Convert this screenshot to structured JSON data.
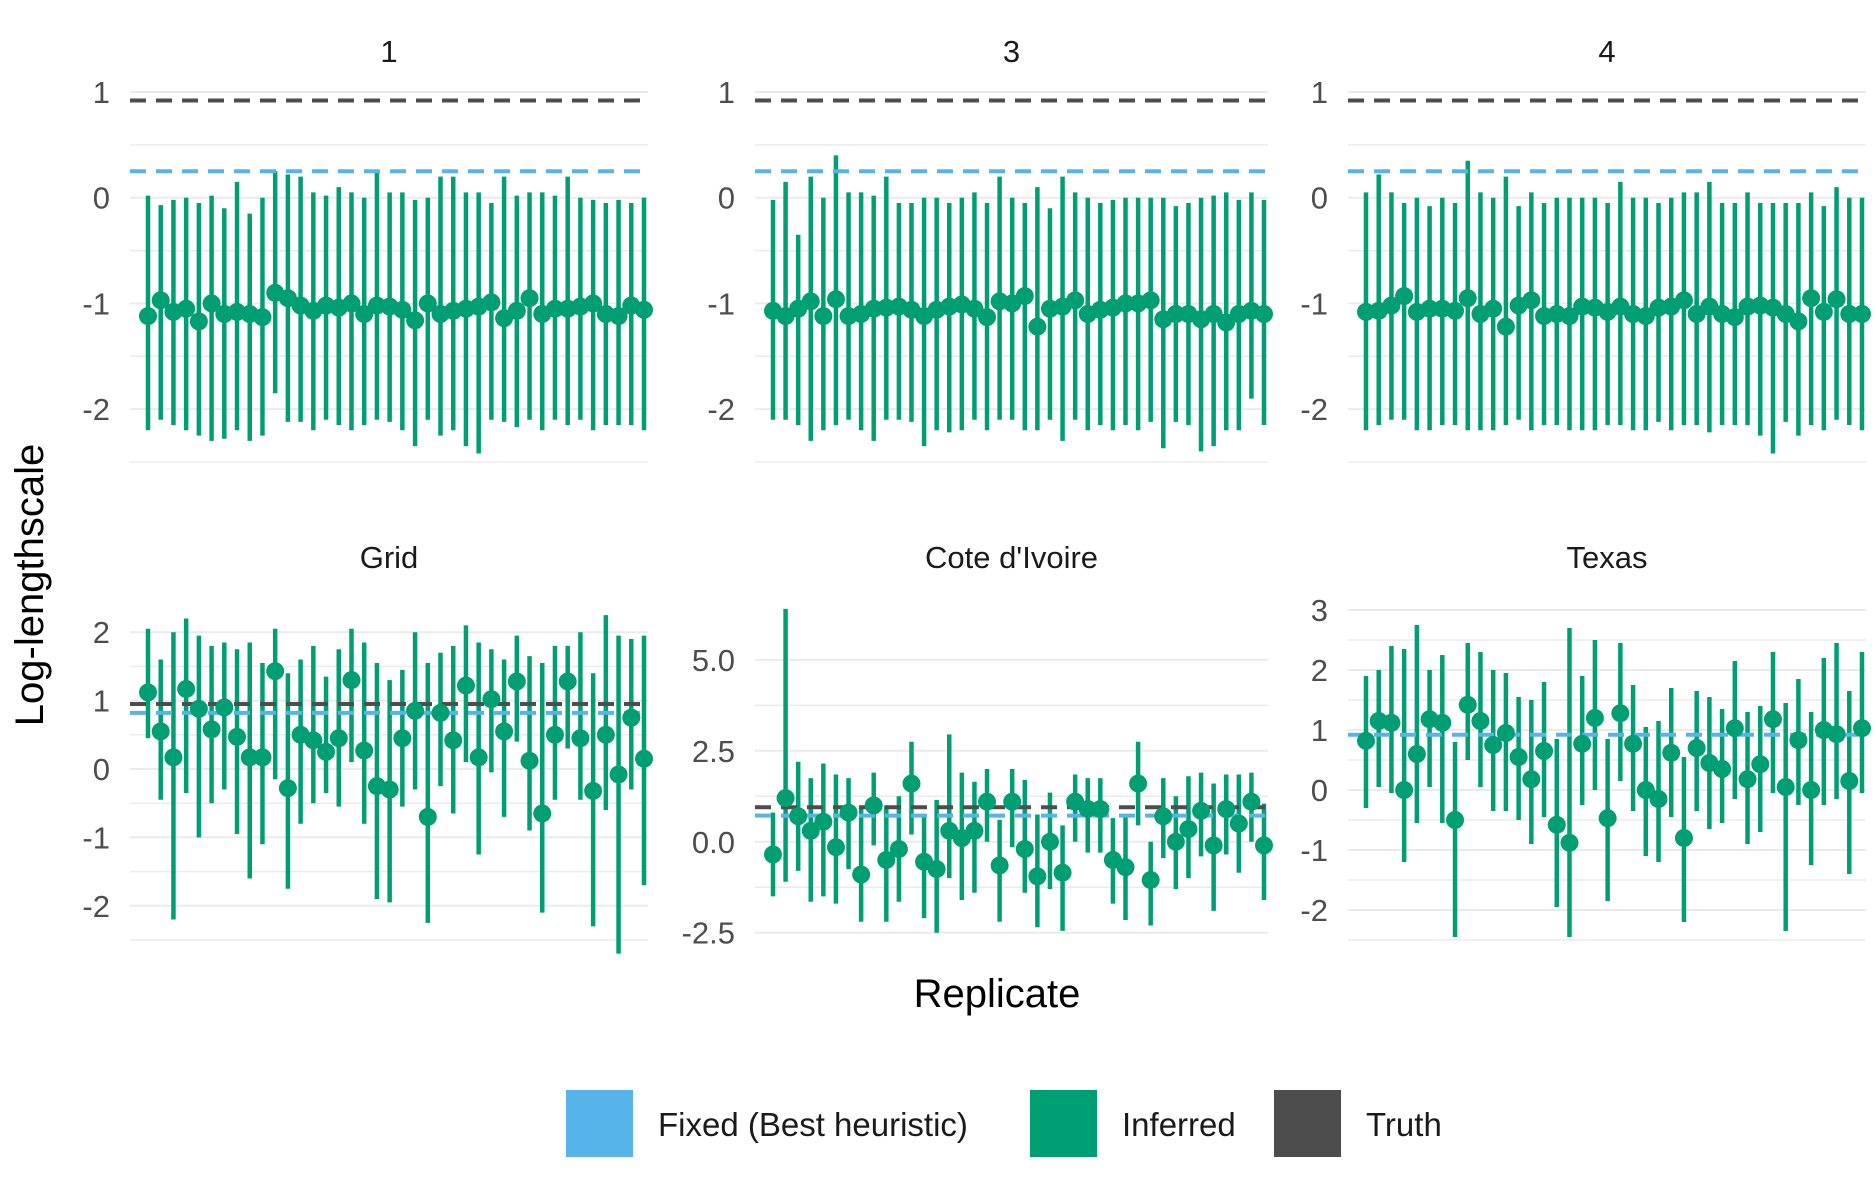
{
  "colors": {
    "fixed": "#56B4E9",
    "inferred": "#009E73",
    "truth": "#4D4D4D",
    "grid": "#ebebeb"
  },
  "figure": {
    "xlabel": "Replicate",
    "ylabel": "Log-lengthscale"
  },
  "legend": {
    "placement": "bottom",
    "items": [
      {
        "key": "fixed",
        "label": "Fixed (Best heuristic)"
      },
      {
        "key": "inferred",
        "label": "Inferred"
      },
      {
        "key": "truth",
        "label": "Truth"
      }
    ]
  },
  "chart_data": [
    {
      "type": "scatter",
      "title": "1",
      "ylim": [
        -2.5,
        1.0
      ],
      "yticks": [
        -2,
        -1,
        0,
        1
      ],
      "ytick_labels": [
        "-2",
        "-1",
        "0",
        "1"
      ],
      "grid": true,
      "truth": 0.92,
      "fixed": 0.25,
      "x": [
        1,
        2,
        3,
        4,
        5,
        6,
        7,
        8,
        9,
        10,
        11,
        12,
        13,
        14,
        15,
        16,
        17,
        18,
        19,
        20,
        21,
        22,
        23,
        24,
        25,
        26,
        27,
        28,
        29,
        30,
        31,
        32,
        33,
        34,
        35,
        36,
        37,
        38,
        39,
        40
      ],
      "estimate": [
        -1.12,
        -0.97,
        -1.08,
        -1.05,
        -1.17,
        -1.0,
        -1.1,
        -1.08,
        -1.1,
        -1.13,
        -0.9,
        -0.95,
        -1.02,
        -1.07,
        -1.02,
        -1.04,
        -1.0,
        -1.1,
        -1.02,
        -1.03,
        -1.06,
        -1.16,
        -1.0,
        -1.1,
        -1.07,
        -1.05,
        -1.03,
        -0.99,
        -1.14,
        -1.07,
        -0.95,
        -1.1,
        -1.05,
        -1.05,
        -1.03,
        -1.0,
        -1.1,
        -1.12,
        -1.02,
        -1.06
      ],
      "lower": [
        -2.2,
        -2.1,
        -2.15,
        -2.2,
        -2.25,
        -2.3,
        -2.28,
        -2.2,
        -2.3,
        -2.25,
        -1.85,
        -2.12,
        -2.12,
        -2.2,
        -2.1,
        -2.15,
        -2.2,
        -2.15,
        -2.1,
        -2.12,
        -2.2,
        -2.35,
        -2.1,
        -2.25,
        -2.2,
        -2.35,
        -2.42,
        -2.1,
        -2.12,
        -2.17,
        -2.1,
        -2.2,
        -2.1,
        -2.15,
        -2.1,
        -2.2,
        -2.15,
        -2.15,
        -2.15,
        -2.2
      ],
      "upper": [
        0.02,
        -0.07,
        -0.02,
        0.0,
        -0.05,
        0.02,
        -0.1,
        0.15,
        -0.15,
        0.0,
        0.25,
        0.22,
        0.2,
        0.05,
        0.02,
        0.1,
        0.05,
        0.0,
        0.25,
        0.05,
        0.05,
        -0.02,
        0.0,
        0.2,
        0.2,
        0.05,
        0.05,
        -0.05,
        0.2,
        0.02,
        0.05,
        0.05,
        0.02,
        0.2,
        0.0,
        -0.02,
        -0.05,
        -0.02,
        -0.05,
        0.0
      ]
    },
    {
      "type": "scatter",
      "title": "3",
      "ylim": [
        -2.5,
        1.0
      ],
      "yticks": [
        -2,
        -1,
        0,
        1
      ],
      "ytick_labels": [
        "-2",
        "-1",
        "0",
        "1"
      ],
      "grid": true,
      "truth": 0.92,
      "fixed": 0.25,
      "x": [
        1,
        2,
        3,
        4,
        5,
        6,
        7,
        8,
        9,
        10,
        11,
        12,
        13,
        14,
        15,
        16,
        17,
        18,
        19,
        20,
        21,
        22,
        23,
        24,
        25,
        26,
        27,
        28,
        29,
        30,
        31,
        32,
        33,
        34,
        35,
        36,
        37,
        38,
        39,
        40
      ],
      "estimate": [
        -1.07,
        -1.12,
        -1.05,
        -0.98,
        -1.12,
        -0.96,
        -1.12,
        -1.1,
        -1.05,
        -1.04,
        -1.03,
        -1.06,
        -1.12,
        -1.06,
        -1.03,
        -1.01,
        -1.05,
        -1.13,
        -0.98,
        -1.0,
        -0.93,
        -1.22,
        -1.05,
        -1.03,
        -0.97,
        -1.1,
        -1.06,
        -1.04,
        -1.0,
        -1.0,
        -0.97,
        -1.15,
        -1.1,
        -1.1,
        -1.15,
        -1.1,
        -1.18,
        -1.1,
        -1.07,
        -1.1
      ],
      "lower": [
        -2.1,
        -2.1,
        -2.15,
        -2.3,
        -2.2,
        -2.15,
        -2.1,
        -2.2,
        -2.3,
        -2.1,
        -2.1,
        -2.12,
        -2.35,
        -2.2,
        -2.22,
        -2.2,
        -2.1,
        -2.2,
        -2.1,
        -2.1,
        -2.2,
        -2.2,
        -2.1,
        -2.3,
        -2.1,
        -2.2,
        -2.15,
        -2.2,
        -2.15,
        -2.2,
        -2.12,
        -2.37,
        -2.12,
        -2.15,
        -2.4,
        -2.35,
        -2.2,
        -2.2,
        -1.9,
        -2.15
      ],
      "upper": [
        -0.02,
        0.15,
        -0.35,
        0.2,
        0.0,
        0.4,
        0.05,
        0.05,
        0.02,
        0.2,
        -0.05,
        -0.05,
        0.0,
        0.0,
        -0.05,
        0.0,
        0.05,
        -0.05,
        0.2,
        0.0,
        -0.05,
        0.1,
        -0.1,
        0.2,
        0.05,
        0.0,
        -0.05,
        -0.02,
        0.0,
        0.0,
        0.0,
        0.0,
        -0.08,
        -0.05,
        0.0,
        0.02,
        0.05,
        -0.02,
        0.05,
        -0.02
      ]
    },
    {
      "type": "scatter",
      "title": "4",
      "ylim": [
        -2.5,
        1.0
      ],
      "yticks": [
        -2,
        -1,
        0,
        1
      ],
      "ytick_labels": [
        "-2",
        "-1",
        "0",
        "1"
      ],
      "grid": true,
      "truth": 0.92,
      "fixed": 0.25,
      "x": [
        1,
        2,
        3,
        4,
        5,
        6,
        7,
        8,
        9,
        10,
        11,
        12,
        13,
        14,
        15,
        16,
        17,
        18,
        19,
        20,
        21,
        22,
        23,
        24,
        25,
        26,
        27,
        28,
        29,
        30,
        31,
        32,
        33,
        34,
        35,
        36,
        37,
        38,
        39,
        40
      ],
      "estimate": [
        -1.08,
        -1.07,
        -1.02,
        -0.93,
        -1.08,
        -1.05,
        -1.05,
        -1.07,
        -0.95,
        -1.1,
        -1.05,
        -1.22,
        -1.02,
        -0.97,
        -1.12,
        -1.1,
        -1.12,
        -1.03,
        -1.04,
        -1.08,
        -1.03,
        -1.1,
        -1.12,
        -1.04,
        -1.03,
        -0.97,
        -1.1,
        -1.03,
        -1.1,
        -1.13,
        -1.03,
        -1.02,
        -1.04,
        -1.1,
        -1.17,
        -0.95,
        -1.08,
        -0.96,
        -1.1,
        -1.1
      ],
      "lower": [
        -2.2,
        -2.15,
        -2.1,
        -2.1,
        -2.2,
        -2.2,
        -2.15,
        -2.15,
        -2.2,
        -2.2,
        -2.2,
        -2.15,
        -2.1,
        -2.2,
        -2.15,
        -2.15,
        -2.2,
        -2.2,
        -2.2,
        -2.15,
        -2.15,
        -2.2,
        -2.2,
        -2.12,
        -2.2,
        -2.15,
        -2.15,
        -2.22,
        -2.15,
        -2.15,
        -2.15,
        -2.25,
        -2.42,
        -2.12,
        -2.25,
        -2.15,
        -2.2,
        -2.1,
        -2.15,
        -2.2
      ],
      "upper": [
        0.05,
        0.22,
        0.05,
        -0.05,
        0.0,
        -0.08,
        0.0,
        -0.05,
        0.35,
        0.05,
        0.0,
        0.2,
        -0.08,
        0.05,
        -0.05,
        0.0,
        0.0,
        0.0,
        0.0,
        -0.05,
        0.15,
        0.0,
        0.0,
        -0.05,
        0.0,
        0.05,
        0.05,
        0.15,
        -0.05,
        -0.05,
        0.05,
        -0.05,
        -0.05,
        -0.05,
        -0.05,
        0.05,
        -0.08,
        0.1,
        0.0,
        0.0
      ]
    },
    {
      "type": "scatter",
      "title": "Grid",
      "ylim": [
        -2.5,
        2.5
      ],
      "yticks": [
        -2,
        -1,
        0,
        1,
        2
      ],
      "ytick_labels": [
        "-2",
        "-1",
        "0",
        "1",
        "2"
      ],
      "grid": true,
      "truth": 0.95,
      "fixed": 0.82,
      "x": [
        1,
        2,
        3,
        4,
        5,
        6,
        7,
        8,
        9,
        10,
        11,
        12,
        13,
        14,
        15,
        16,
        17,
        18,
        19,
        20,
        21,
        22,
        23,
        24,
        25,
        26,
        27,
        28,
        29,
        30,
        31,
        32,
        33,
        34,
        35,
        36,
        37,
        38,
        39,
        40
      ],
      "estimate": [
        1.12,
        0.55,
        0.17,
        1.17,
        0.88,
        0.58,
        0.9,
        0.47,
        0.17,
        0.17,
        1.43,
        -0.28,
        0.5,
        0.42,
        0.25,
        0.45,
        1.3,
        0.27,
        -0.25,
        -0.3,
        0.45,
        0.85,
        -0.7,
        0.82,
        0.42,
        1.22,
        0.17,
        1.02,
        0.55,
        1.28,
        0.12,
        -0.65,
        0.5,
        1.28,
        0.45,
        -0.32,
        0.5,
        -0.08,
        0.75,
        0.15
      ],
      "lower": [
        0.45,
        -0.45,
        -2.2,
        -0.35,
        -1.0,
        -0.5,
        -0.3,
        -0.95,
        -1.6,
        -1.1,
        -0.15,
        -1.75,
        -0.8,
        -0.5,
        -0.35,
        -0.55,
        0.1,
        -0.8,
        -1.9,
        -1.95,
        -0.55,
        -0.3,
        -2.25,
        -0.25,
        -0.65,
        0.1,
        -1.25,
        -0.05,
        -0.7,
        0.4,
        -0.9,
        -2.1,
        -0.45,
        0.3,
        -0.45,
        -2.3,
        -0.6,
        -2.7,
        -0.3,
        -1.7
      ],
      "upper": [
        2.05,
        1.6,
        2.0,
        2.2,
        1.95,
        1.8,
        1.85,
        1.75,
        1.85,
        1.55,
        2.05,
        1.4,
        1.6,
        1.8,
        1.35,
        1.75,
        2.05,
        1.85,
        1.55,
        1.3,
        1.45,
        2.0,
        1.55,
        1.7,
        1.8,
        2.1,
        1.85,
        1.75,
        1.6,
        1.95,
        1.65,
        1.55,
        1.8,
        1.8,
        2.0,
        1.4,
        2.25,
        1.95,
        1.9,
        1.95
      ]
    },
    {
      "type": "scatter",
      "title": "Cote d'Ivoire",
      "ylim": [
        -2.7,
        6.7
      ],
      "yticks": [
        -2.5,
        0.0,
        2.5,
        5.0
      ],
      "ytick_labels": [
        "-2.5",
        "0.0",
        "2.5",
        "5.0"
      ],
      "grid": true,
      "truth": 0.95,
      "fixed": 0.72,
      "x": [
        1,
        2,
        3,
        4,
        5,
        6,
        7,
        8,
        9,
        10,
        11,
        12,
        13,
        14,
        15,
        16,
        17,
        18,
        19,
        20,
        21,
        22,
        23,
        24,
        25,
        26,
        27,
        28,
        29,
        30,
        31,
        32,
        33,
        34,
        35,
        36,
        37,
        38,
        39,
        40
      ],
      "estimate": [
        -0.35,
        1.2,
        0.7,
        0.3,
        0.55,
        -0.15,
        0.8,
        -0.9,
        1.0,
        -0.5,
        -0.2,
        1.6,
        -0.55,
        -0.75,
        0.3,
        0.1,
        0.3,
        1.1,
        -0.65,
        1.1,
        -0.2,
        -0.95,
        0.0,
        -0.85,
        1.1,
        0.9,
        0.9,
        -0.5,
        -0.7,
        1.6,
        -1.05,
        0.7,
        0.0,
        0.35,
        0.85,
        -0.1,
        0.9,
        0.5,
        1.1,
        -0.1
      ],
      "lower": [
        -1.5,
        -1.1,
        -0.8,
        -1.65,
        -1.5,
        -1.7,
        -0.75,
        -2.2,
        -0.1,
        -2.2,
        -1.65,
        0.2,
        -2.1,
        -2.5,
        -1.0,
        -1.6,
        -1.4,
        0.0,
        -2.2,
        -0.15,
        -1.4,
        -2.35,
        -1.3,
        -2.45,
        0.0,
        -0.3,
        -0.3,
        -1.7,
        -2.15,
        0.45,
        -2.3,
        -0.45,
        -1.3,
        -1.0,
        -0.4,
        -1.9,
        -0.35,
        -0.85,
        0.0,
        -1.6
      ],
      "upper": [
        0.8,
        6.4,
        2.2,
        1.75,
        2.15,
        1.85,
        1.75,
        0.9,
        1.9,
        1.0,
        1.25,
        2.75,
        0.75,
        1.15,
        2.95,
        1.9,
        1.65,
        2.0,
        0.6,
        2.0,
        1.7,
        0.75,
        1.35,
        0.45,
        1.85,
        1.75,
        1.75,
        0.65,
        0.7,
        2.75,
        0.0,
        1.75,
        1.25,
        1.8,
        1.9,
        1.6,
        1.85,
        1.85,
        1.9,
        1.05
      ]
    },
    {
      "type": "scatter",
      "title": "Texas",
      "ylim": [
        -2.5,
        3.2
      ],
      "yticks": [
        -2,
        -1,
        0,
        1,
        2,
        3
      ],
      "ytick_labels": [
        "-2",
        "-1",
        "0",
        "1",
        "2",
        "3"
      ],
      "grid": true,
      "truth": null,
      "fixed": 0.92,
      "x": [
        1,
        2,
        3,
        4,
        5,
        6,
        7,
        8,
        9,
        10,
        11,
        12,
        13,
        14,
        15,
        16,
        17,
        18,
        19,
        20,
        21,
        22,
        23,
        24,
        25,
        26,
        27,
        28,
        29,
        30,
        31,
        32,
        33,
        34,
        35,
        36,
        37,
        38,
        39,
        40
      ],
      "estimate": [
        0.82,
        1.15,
        1.12,
        0.0,
        0.6,
        1.18,
        1.12,
        -0.5,
        1.42,
        1.15,
        0.75,
        0.95,
        0.55,
        0.18,
        0.65,
        -0.58,
        -0.88,
        0.77,
        1.2,
        -0.47,
        1.28,
        0.77,
        0.0,
        -0.15,
        0.62,
        -0.8,
        0.7,
        0.45,
        0.35,
        1.03,
        0.18,
        0.43,
        1.18,
        0.05,
        0.83,
        0.0,
        1.0,
        0.93,
        0.15,
        1.03
      ],
      "lower": [
        -0.3,
        0.05,
        -0.05,
        -1.2,
        -0.55,
        0.05,
        -0.55,
        -2.45,
        0.5,
        0.05,
        -0.35,
        -0.35,
        -0.5,
        -0.9,
        -0.45,
        -1.95,
        -2.45,
        -0.25,
        0.0,
        -1.85,
        0.15,
        -0.35,
        -1.1,
        -1.2,
        -0.45,
        -2.2,
        -0.35,
        -0.65,
        -0.55,
        -0.15,
        -0.9,
        -0.7,
        -0.05,
        -2.35,
        -0.25,
        -1.25,
        -0.25,
        -0.15,
        -1.4,
        -0.05
      ],
      "upper": [
        1.9,
        2.0,
        2.4,
        2.35,
        2.75,
        2.0,
        2.25,
        0.8,
        2.45,
        2.3,
        2.0,
        1.95,
        1.55,
        1.5,
        1.8,
        0.85,
        2.7,
        1.9,
        2.5,
        0.85,
        2.45,
        1.75,
        1.05,
        1.15,
        1.7,
        0.55,
        1.65,
        1.55,
        1.35,
        2.15,
        1.3,
        1.4,
        2.3,
        1.45,
        1.85,
        1.3,
        2.2,
        2.45,
        1.65,
        2.3
      ]
    }
  ]
}
